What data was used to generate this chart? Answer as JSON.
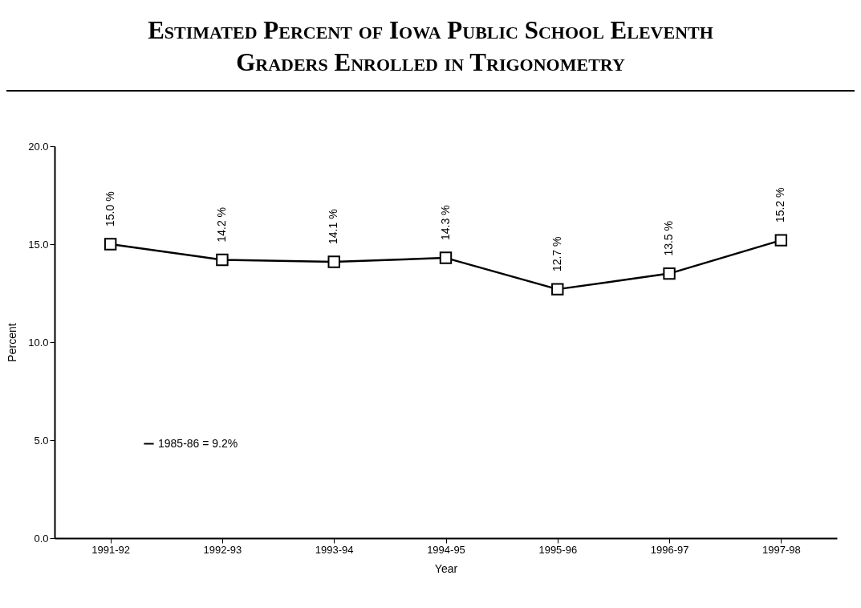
{
  "chart_data": {
    "type": "line",
    "title": "Estimated Percent of Iowa Public School Eleventh Graders Enrolled in Trigonometry",
    "xlabel": "Year",
    "ylabel": "Percent",
    "categories": [
      "1991-92",
      "1992-93",
      "1993-94",
      "1994-95",
      "1995-96",
      "1996-97",
      "1997-98"
    ],
    "series": [
      {
        "name": "1985-86 = 9.2%",
        "color": "#000000",
        "values": [
          15.0,
          14.2,
          14.1,
          14.3,
          12.7,
          13.5,
          15.2
        ],
        "value_labels": [
          "15.0 %",
          "14.2 %",
          "14.1 %",
          "14.3 %",
          "12.7 %",
          "13.5 %",
          "15.2 %"
        ]
      }
    ],
    "ylim": [
      0,
      20
    ],
    "yticks": [
      {
        "value": 0,
        "label": "0.0"
      },
      {
        "value": 5,
        "label": "5.0"
      },
      {
        "value": 10,
        "label": "10.0"
      },
      {
        "value": 15,
        "label": "15.0"
      },
      {
        "value": 20,
        "label": "20.0"
      }
    ],
    "grid": false,
    "legend": "bottom left",
    "marker": "square",
    "line_style": "solid"
  }
}
